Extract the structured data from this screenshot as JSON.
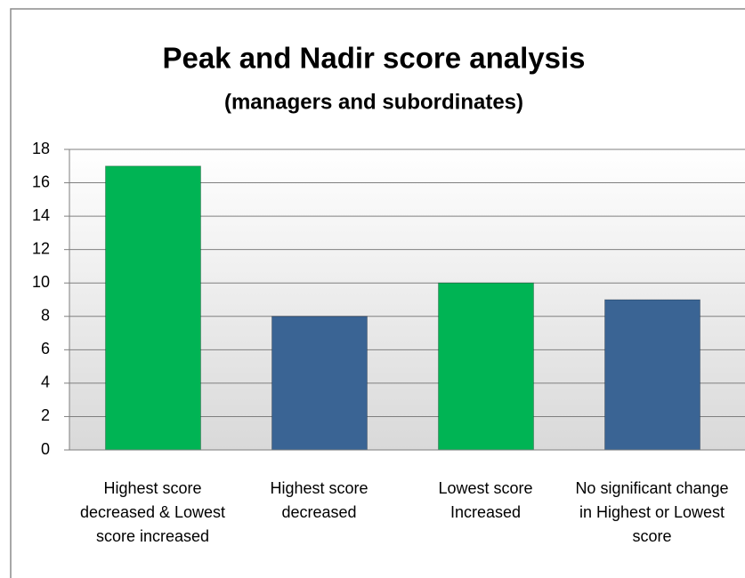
{
  "chart_data": {
    "type": "bar",
    "title": "Peak and Nadir score analysis",
    "subtitle": "(managers and subordinates)",
    "categories": [
      "Highest score decreased & Lowest score increased",
      "Highest score decreased",
      "Lowest score Increased",
      "No significant change in Highest or Lowest score"
    ],
    "values": [
      17,
      8,
      10,
      9
    ],
    "colors": [
      "#00b454",
      "#3a6494",
      "#00b454",
      "#3a6494"
    ],
    "ylim": [
      0,
      18
    ],
    "yticks": [
      0,
      2,
      4,
      6,
      8,
      10,
      12,
      14,
      16,
      18
    ],
    "grid": true
  }
}
